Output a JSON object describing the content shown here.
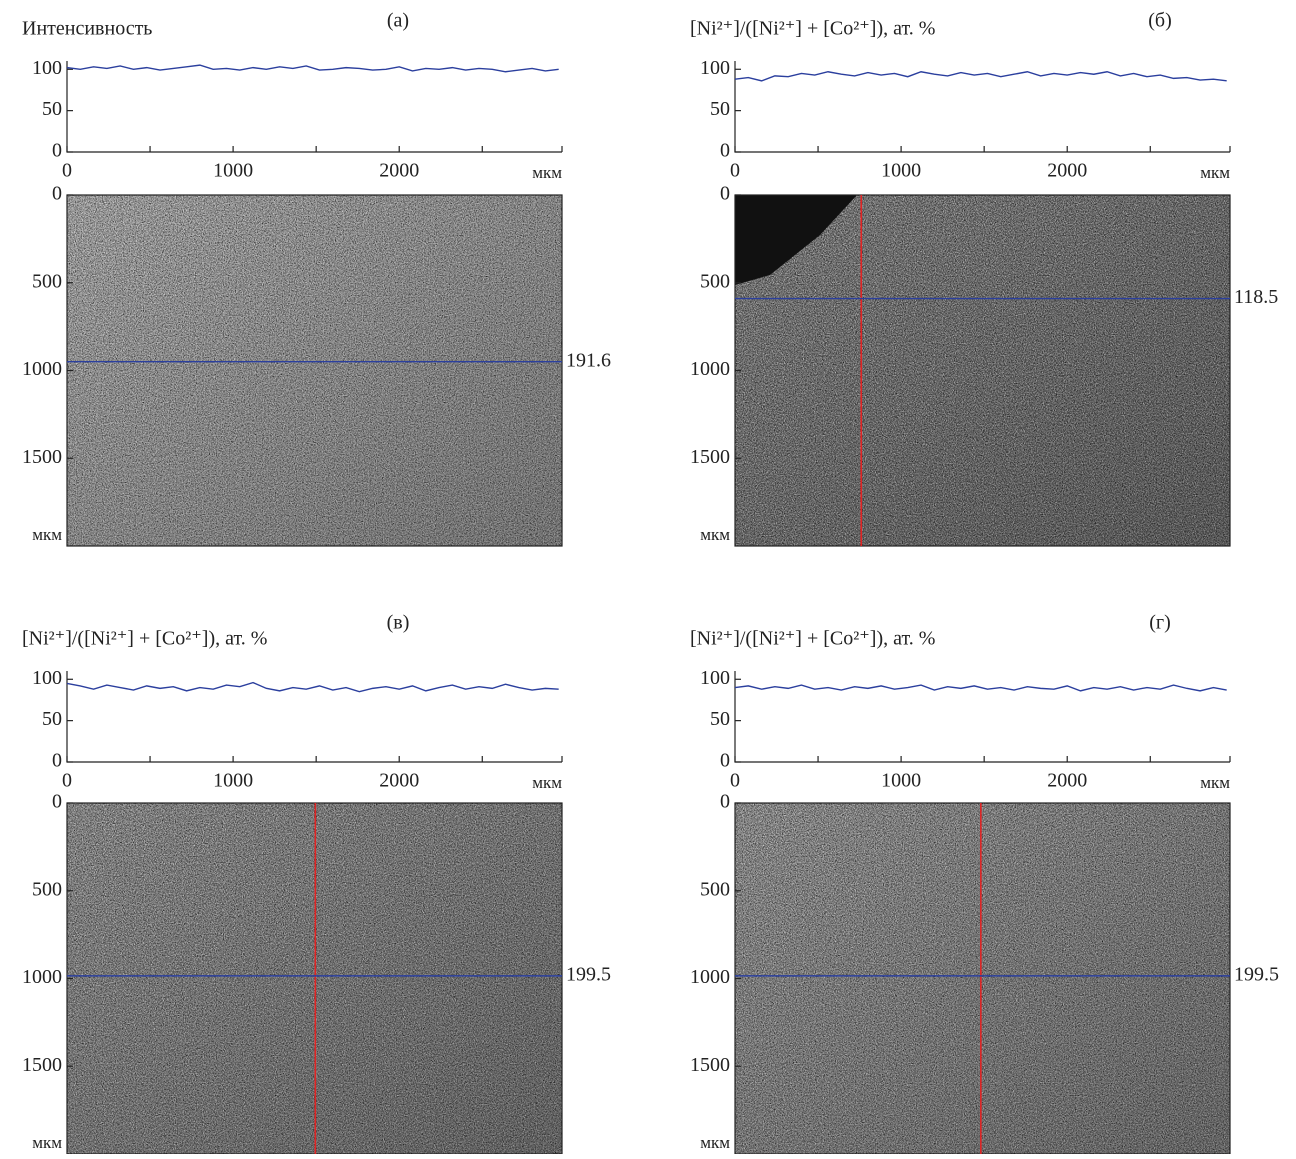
{
  "chart_data": [
    {
      "type": "line",
      "title": "(a)",
      "ylabel": "Интенсивность",
      "xlabel": "мкм",
      "x": [
        0,
        80,
        160,
        240,
        320,
        400,
        480,
        560,
        640,
        720,
        800,
        880,
        960,
        1040,
        1120,
        1200,
        1280,
        1360,
        1440,
        1520,
        1600,
        1680,
        1760,
        1840,
        1920,
        2000,
        2080,
        2160,
        2240,
        2320,
        2400,
        2480,
        2560,
        2640,
        2720,
        2800,
        2880,
        2960
      ],
      "series": [
        {
          "color": "#2b3f9e",
          "values": [
            102,
            100,
            103,
            101,
            104,
            100,
            102,
            99,
            101,
            103,
            105,
            100,
            101,
            99,
            102,
            100,
            103,
            101,
            104,
            99,
            100,
            102,
            101,
            99,
            100,
            103,
            98,
            101,
            100,
            102,
            99,
            101,
            100,
            97,
            99,
            101,
            98,
            100
          ]
        }
      ],
      "xlim": [
        0,
        2980
      ],
      "xticks": [
        0,
        1000,
        2000
      ],
      "xminorticks": [
        500,
        1500,
        2500
      ],
      "ylim": [
        0,
        110
      ],
      "yticks": [
        0,
        50,
        100
      ],
      "image": {
        "ylim": [
          0,
          2000
        ],
        "yticks": [
          0,
          500,
          1000,
          1500
        ],
        "ylabel": "мкм",
        "color": "#a9a9a9",
        "hline": 950,
        "hline_label": "191.6"
      }
    },
    {
      "type": "line",
      "title": "(б)",
      "ylabel": "[Ni²⁺]/([Ni²⁺] + [Co²⁺]), ат. %",
      "xlabel": "мкм",
      "x": [
        0,
        80,
        160,
        240,
        320,
        400,
        480,
        560,
        640,
        720,
        800,
        880,
        960,
        1040,
        1120,
        1200,
        1280,
        1360,
        1440,
        1520,
        1600,
        1680,
        1760,
        1840,
        1920,
        2000,
        2080,
        2160,
        2240,
        2320,
        2400,
        2480,
        2560,
        2640,
        2720,
        2800,
        2880,
        2960
      ],
      "series": [
        {
          "color": "#2b3f9e",
          "values": [
            88,
            90,
            86,
            92,
            91,
            95,
            93,
            97,
            94,
            92,
            96,
            93,
            95,
            91,
            97,
            94,
            92,
            96,
            93,
            95,
            91,
            94,
            97,
            92,
            95,
            93,
            96,
            94,
            97,
            92,
            95,
            91,
            93,
            89,
            90,
            87,
            88,
            86
          ]
        }
      ],
      "xlim": [
        0,
        2980
      ],
      "xticks": [
        0,
        1000,
        2000
      ],
      "xminorticks": [
        500,
        1500,
        2500
      ],
      "ylim": [
        0,
        110
      ],
      "yticks": [
        0,
        50,
        100
      ],
      "image": {
        "ylim": [
          0,
          2000
        ],
        "yticks": [
          0,
          500,
          1000,
          1500
        ],
        "ylabel": "мкм",
        "color": "#747474",
        "hline": 590,
        "hline_label": "118.5",
        "vline": 760
      }
    },
    {
      "type": "line",
      "title": "(в)",
      "ylabel": "[Ni²⁺]/([Ni²⁺] + [Co²⁺]), ат. %",
      "xlabel": "мкм",
      "x": [
        0,
        80,
        160,
        240,
        320,
        400,
        480,
        560,
        640,
        720,
        800,
        880,
        960,
        1040,
        1120,
        1200,
        1280,
        1360,
        1440,
        1520,
        1600,
        1680,
        1760,
        1840,
        1920,
        2000,
        2080,
        2160,
        2240,
        2320,
        2400,
        2480,
        2560,
        2640,
        2720,
        2800,
        2880,
        2960
      ],
      "series": [
        {
          "color": "#2b3f9e",
          "values": [
            95,
            92,
            88,
            93,
            90,
            87,
            92,
            89,
            91,
            86,
            90,
            88,
            93,
            91,
            96,
            89,
            86,
            90,
            88,
            92,
            87,
            90,
            85,
            89,
            91,
            88,
            92,
            86,
            90,
            93,
            88,
            91,
            89,
            94,
            90,
            87,
            89,
            88
          ]
        }
      ],
      "xlim": [
        0,
        2980
      ],
      "xticks": [
        0,
        1000,
        2000
      ],
      "xminorticks": [
        500,
        1500,
        2500
      ],
      "ylim": [
        0,
        110
      ],
      "yticks": [
        0,
        50,
        100
      ],
      "image": {
        "ylim": [
          0,
          2000
        ],
        "yticks": [
          0,
          500,
          1000,
          1500
        ],
        "ylabel": "мкм",
        "color": "#868686",
        "hline": 985,
        "hline_label": "199.5",
        "vline": 1495
      }
    },
    {
      "type": "line",
      "title": "(г)",
      "ylabel": "[Ni²⁺]/([Ni²⁺] + [Co²⁺]), ат. %",
      "xlabel": "мкм",
      "x": [
        0,
        80,
        160,
        240,
        320,
        400,
        480,
        560,
        640,
        720,
        800,
        880,
        960,
        1040,
        1120,
        1200,
        1280,
        1360,
        1440,
        1520,
        1600,
        1680,
        1760,
        1840,
        1920,
        2000,
        2080,
        2160,
        2240,
        2320,
        2400,
        2480,
        2560,
        2640,
        2720,
        2800,
        2880,
        2960
      ],
      "series": [
        {
          "color": "#2b3f9e",
          "values": [
            90,
            92,
            88,
            91,
            89,
            93,
            88,
            90,
            87,
            91,
            89,
            92,
            88,
            90,
            93,
            87,
            91,
            89,
            92,
            88,
            90,
            87,
            91,
            89,
            88,
            92,
            86,
            90,
            88,
            91,
            87,
            90,
            88,
            93,
            89,
            86,
            90,
            87
          ]
        }
      ],
      "xlim": [
        0,
        2980
      ],
      "xticks": [
        0,
        1000,
        2000
      ],
      "xminorticks": [
        500,
        1500,
        2500
      ],
      "ylim": [
        0,
        110
      ],
      "yticks": [
        0,
        50,
        100
      ],
      "image": {
        "ylim": [
          0,
          2000
        ],
        "yticks": [
          0,
          500,
          1000,
          1500
        ],
        "ylabel": "мкм",
        "color": "#8c8c8c",
        "hline": 985,
        "hline_label": "199.5",
        "vline": 1480
      }
    }
  ]
}
